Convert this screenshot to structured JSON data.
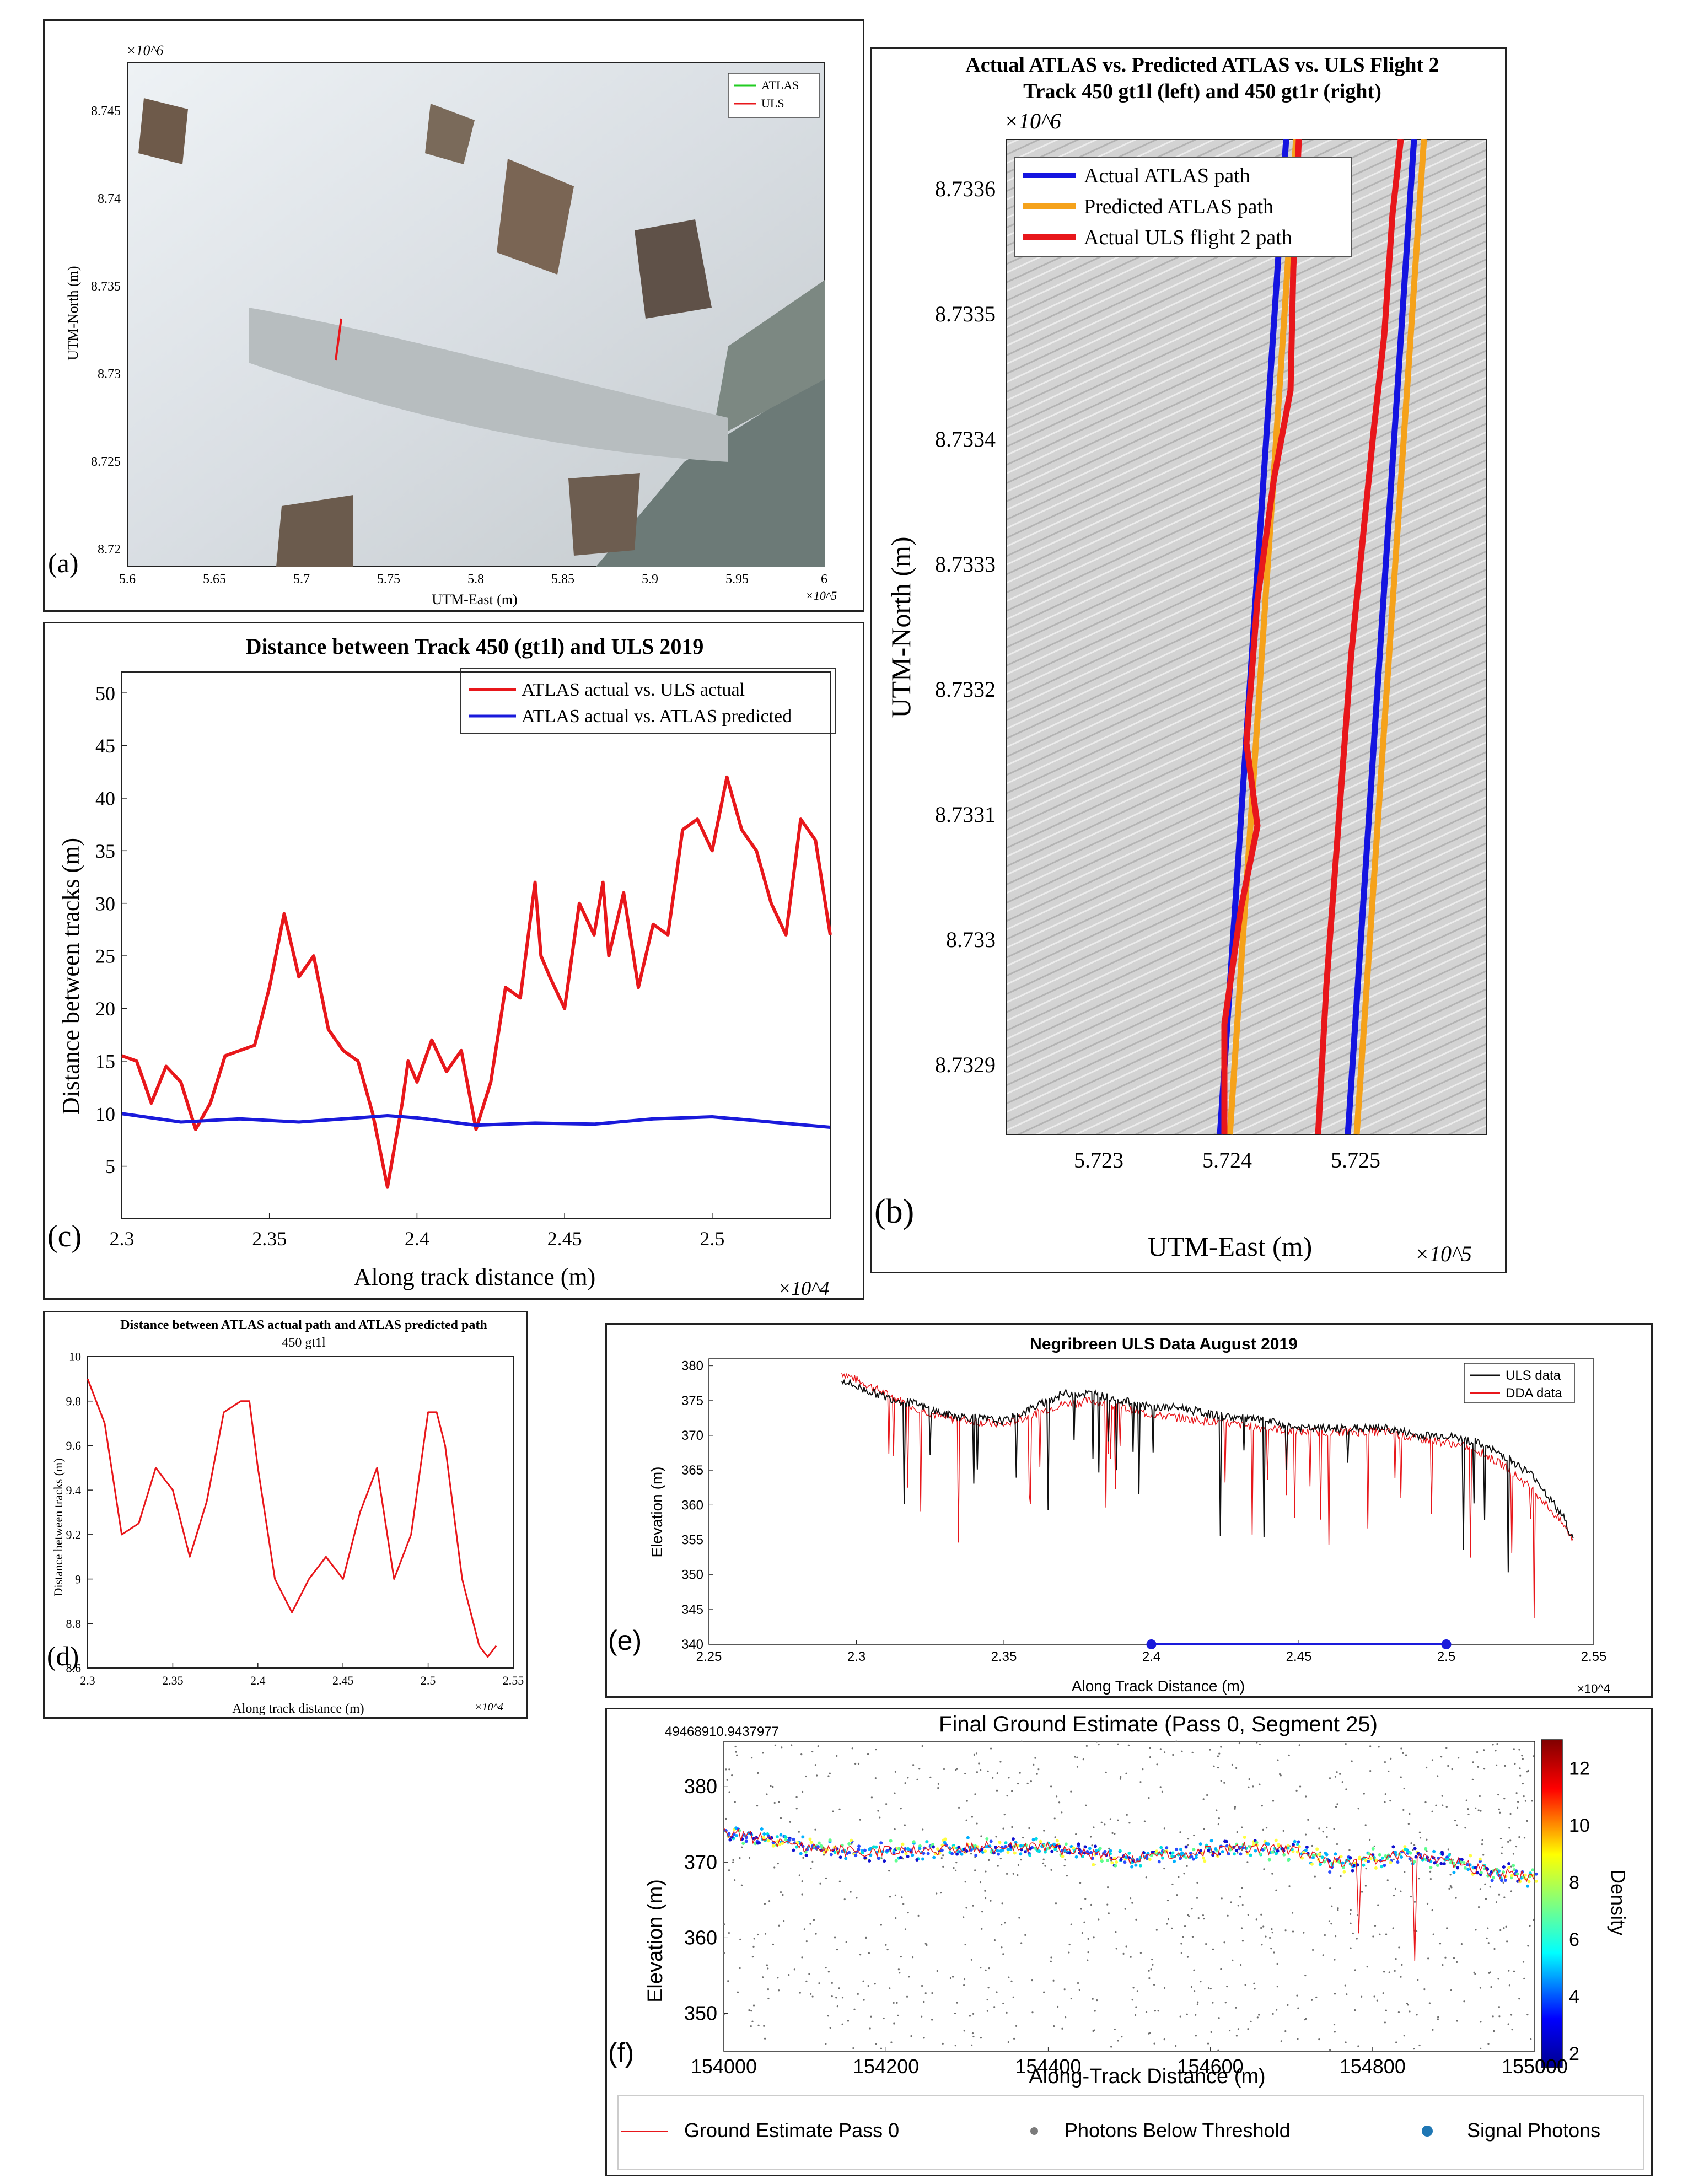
{
  "panels": {
    "a": {
      "letter": "(a)",
      "xlabel": "UTM-East (m)",
      "ylabel": "UTM-North (m)",
      "x_exp": "×10^5",
      "y_exp": "×10^6",
      "xticks": [
        "5.6",
        "5.65",
        "5.7",
        "5.75",
        "5.8",
        "5.85",
        "5.9",
        "5.95",
        "6"
      ],
      "yticks": [
        "8.745",
        "8.74",
        "8.735",
        "8.73",
        "8.725",
        "8.72"
      ],
      "legend": [
        "ATLAS",
        "ULS"
      ]
    },
    "b": {
      "letter": "(b)",
      "title1": "Actual ATLAS vs. Predicted ATLAS vs. ULS Flight 2",
      "title2": "Track 450 gt1l (left) and 450 gt1r (right)",
      "xlabel": "UTM-East (m)",
      "ylabel": "UTM-North (m)",
      "x_exp": "×10^5",
      "y_exp": "×10^6",
      "xticks": [
        "5.723",
        "5.724",
        "5.725"
      ],
      "yticks": [
        "8.7336",
        "8.7335",
        "8.7334",
        "8.7333",
        "8.7332",
        "8.7331",
        "8.733",
        "8.7329"
      ],
      "legend": [
        "Actual ATLAS path",
        "Predicted ATLAS path",
        "Actual ULS flight 2 path"
      ]
    },
    "c": {
      "letter": "(c)",
      "title": "Distance between Track 450 (gt1l) and ULS 2019",
      "xlabel": "Along track distance (m)",
      "ylabel": "Distance between tracks (m)",
      "x_exp": "×10^4",
      "legend": [
        "ATLAS actual vs. ULS actual",
        "ATLAS actual vs. ATLAS predicted"
      ]
    },
    "d": {
      "letter": "(d)",
      "title": "Distance between ATLAS actual path and ATLAS predicted path",
      "subtitle": "450 gt1l",
      "xlabel": "Along track distance (m)",
      "ylabel": "Distance between tracks (m)",
      "x_exp": "×10^4"
    },
    "e": {
      "letter": "(e)",
      "title": "Negribreen ULS Data August 2019",
      "xlabel": "Along Track Distance (m)",
      "ylabel": "Elevation (m)",
      "x_exp": "×10^4",
      "legend": [
        "ULS data",
        "DDA data"
      ]
    },
    "f": {
      "letter": "(f)",
      "title": "Final Ground Estimate (Pass 0, Segment 25)",
      "corner_text": "49468910.9437977",
      "xlabel": "Along-Track Distance (m)",
      "ylabel": "Elevation (m)",
      "colorbar_label": "Density",
      "legend": [
        "Ground Estimate Pass 0",
        "Photons Below Threshold",
        "Signal Photons"
      ]
    }
  },
  "chart_data": [
    {
      "id": "c",
      "type": "line",
      "xlim": [
        23000,
        25400
      ],
      "ylim": [
        0,
        52
      ],
      "xticks": [
        23000,
        23500,
        24000,
        24500,
        25000
      ],
      "xtick_labels": [
        "2.3",
        "2.35",
        "2.4",
        "2.45",
        "2.5"
      ],
      "yticks": [
        5,
        10,
        15,
        20,
        25,
        30,
        35,
        40,
        45,
        50
      ],
      "series": [
        {
          "name": "ATLAS actual vs. ULS actual",
          "color": "#e8171b",
          "x": [
            23000,
            23050,
            23100,
            23150,
            23200,
            23250,
            23300,
            23350,
            23400,
            23450,
            23500,
            23550,
            23600,
            23650,
            23700,
            23750,
            23800,
            23850,
            23900,
            23950,
            23970,
            24000,
            24050,
            24100,
            24150,
            24200,
            24250,
            24300,
            24350,
            24400,
            24420,
            24450,
            24500,
            24550,
            24600,
            24630,
            24650,
            24700,
            24750,
            24800,
            24850,
            24900,
            24950,
            25000,
            25050,
            25100,
            25150,
            25200,
            25250,
            25300,
            25350,
            25400
          ],
          "y": [
            15.5,
            15,
            11,
            14.5,
            13,
            8.5,
            11,
            15.5,
            16,
            16.5,
            22,
            29,
            23,
            25,
            18,
            16,
            15,
            10,
            3,
            11,
            15,
            13,
            17,
            14,
            16,
            8.5,
            13,
            22,
            21,
            32,
            25,
            23,
            20,
            30,
            27,
            32,
            25,
            31,
            22,
            28,
            27,
            37,
            38,
            35,
            42,
            37,
            35,
            30,
            27,
            38,
            36,
            27
          ]
        },
        {
          "name": "ATLAS actual vs. ATLAS predicted",
          "color": "#1a1adb",
          "x": [
            23000,
            23200,
            23400,
            23600,
            23800,
            23900,
            24000,
            24200,
            24400,
            24600,
            24800,
            25000,
            25200,
            25400
          ],
          "y": [
            10,
            9.2,
            9.5,
            9.2,
            9.6,
            9.8,
            9.6,
            8.9,
            9.1,
            9.0,
            9.5,
            9.7,
            9.2,
            8.7
          ]
        }
      ]
    },
    {
      "id": "d",
      "type": "line",
      "xlim": [
        23000,
        25500
      ],
      "ylim": [
        8.6,
        10
      ],
      "xticks": [
        23000,
        23500,
        24000,
        24500,
        25000,
        25500
      ],
      "xtick_labels": [
        "2.3",
        "2.35",
        "2.4",
        "2.45",
        "2.5",
        "2.55"
      ],
      "yticks": [
        8.6,
        8.8,
        9,
        9.2,
        9.4,
        9.6,
        9.8,
        10
      ],
      "ytick_labels": [
        "8.6",
        "8.8",
        "9",
        "9.2",
        "9.4",
        "9.6",
        "9.8",
        "10"
      ],
      "series": [
        {
          "color": "#e8171b",
          "x": [
            23000,
            23100,
            23200,
            23300,
            23400,
            23500,
            23600,
            23700,
            23800,
            23900,
            23950,
            24000,
            24100,
            24200,
            24300,
            24400,
            24500,
            24600,
            24700,
            24800,
            24900,
            25000,
            25050,
            25100,
            25200,
            25300,
            25350,
            25400
          ],
          "y": [
            9.9,
            9.7,
            9.2,
            9.25,
            9.5,
            9.4,
            9.1,
            9.35,
            9.75,
            9.8,
            9.8,
            9.5,
            9.0,
            8.85,
            9.0,
            9.1,
            9.0,
            9.3,
            9.5,
            9.0,
            9.2,
            9.75,
            9.75,
            9.6,
            9.0,
            8.7,
            8.65,
            8.7
          ]
        }
      ]
    },
    {
      "id": "e",
      "type": "line",
      "xlim": [
        22500,
        25500
      ],
      "ylim": [
        340,
        381
      ],
      "xticks": [
        22500,
        23000,
        23500,
        24000,
        24500,
        25000,
        25500
      ],
      "xtick_labels": [
        "2.25",
        "2.3",
        "2.35",
        "2.4",
        "2.45",
        "2.5",
        "2.55"
      ],
      "yticks": [
        340,
        345,
        350,
        355,
        360,
        365,
        370,
        375,
        380
      ],
      "series": [
        {
          "name": "ULS data",
          "color": "#111111",
          "x": [
            22950,
            23000,
            23100,
            23200,
            23300,
            23400,
            23500,
            23600,
            23700,
            23800,
            23900,
            24000,
            24100,
            24200,
            24300,
            24400,
            24500,
            24600,
            24700,
            24800,
            24900,
            25000,
            25100,
            25200,
            25300,
            25400,
            25430
          ],
          "y": [
            378,
            377,
            375.5,
            374.5,
            373,
            372.5,
            372,
            374,
            376,
            376,
            375,
            374,
            374,
            373,
            372.5,
            372,
            371,
            371,
            371,
            371,
            370,
            370,
            369,
            367,
            364,
            358,
            355
          ]
        },
        {
          "name": "DDA data",
          "color": "#e8171b",
          "x": [
            22950,
            23000,
            23100,
            23200,
            23300,
            23400,
            23500,
            23600,
            23700,
            23800,
            23900,
            24000,
            24100,
            24200,
            24300,
            24400,
            24500,
            24600,
            24700,
            24800,
            24900,
            25000,
            25100,
            25200,
            25300,
            25400,
            25430
          ],
          "y": [
            379,
            378,
            376,
            374,
            372.5,
            372,
            371.5,
            373,
            374.5,
            375,
            374,
            373,
            372.5,
            372,
            371.5,
            371,
            370.5,
            370.5,
            370.5,
            370.5,
            369.5,
            369,
            368,
            365.5,
            362,
            357,
            355
          ]
        },
        {
          "name": "",
          "color": "#1a1adb",
          "x": [
            24000,
            25000
          ],
          "y": [
            340,
            340
          ]
        }
      ]
    },
    {
      "id": "f",
      "type": "scatter",
      "xlim": [
        154000,
        155000
      ],
      "ylim": [
        345,
        386
      ],
      "xticks": [
        154000,
        154200,
        154400,
        154600,
        154800,
        155000
      ],
      "yticks": [
        350,
        360,
        370,
        380
      ],
      "colorbar": {
        "range": [
          1.5,
          13
        ],
        "ticks": [
          2,
          4,
          6,
          8,
          10,
          12
        ]
      },
      "ground_estimate": {
        "color": "#e8171b",
        "x": [
          154000,
          154050,
          154100,
          154150,
          154200,
          154250,
          154300,
          154350,
          154400,
          154450,
          154500,
          154550,
          154600,
          154650,
          154700,
          154750,
          154800,
          154850,
          154900,
          154950,
          155000
        ],
        "y": [
          374,
          373,
          372,
          371.5,
          371.5,
          371.5,
          372,
          372,
          372,
          371,
          370.5,
          371,
          371.5,
          372,
          371.5,
          370,
          370.5,
          371,
          370,
          368.5,
          368
        ]
      }
    }
  ]
}
